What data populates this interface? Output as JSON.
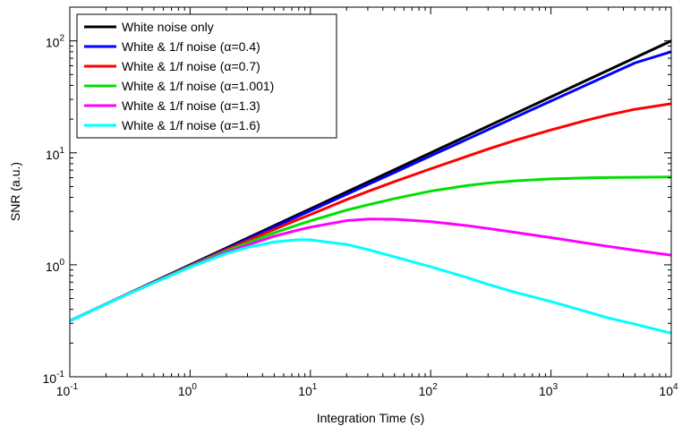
{
  "chart_data": {
    "type": "line",
    "title": "",
    "xlabel": "Integration Time (s)",
    "ylabel": "SNR (a.u.)",
    "x_scale": "log",
    "y_scale": "log",
    "xlim": [
      0.1,
      10000
    ],
    "ylim": [
      0.1,
      200
    ],
    "x_ticks": [
      {
        "value": 0.1,
        "base": "10",
        "exp": "-1"
      },
      {
        "value": 1,
        "base": "10",
        "exp": "0"
      },
      {
        "value": 10,
        "base": "10",
        "exp": "1"
      },
      {
        "value": 100,
        "base": "10",
        "exp": "2"
      },
      {
        "value": 1000,
        "base": "10",
        "exp": "3"
      },
      {
        "value": 10000,
        "base": "10",
        "exp": "4"
      }
    ],
    "y_ticks": [
      {
        "value": 0.1,
        "base": "10",
        "exp": "-1"
      },
      {
        "value": 1,
        "base": "10",
        "exp": "0"
      },
      {
        "value": 10,
        "base": "10",
        "exp": "1"
      },
      {
        "value": 100,
        "base": "10",
        "exp": "2"
      }
    ],
    "grid": false,
    "legend_position": "top-left",
    "x": [
      0.1,
      0.3,
      1,
      2,
      3,
      5,
      8,
      10,
      20,
      30,
      50,
      100,
      200,
      300,
      500,
      1000,
      2000,
      3000,
      5000,
      10000
    ],
    "series": [
      {
        "name": "White noise only",
        "color": "#000000",
        "values": [
          0.316,
          0.548,
          1.0,
          1.414,
          1.732,
          2.236,
          2.828,
          3.162,
          4.472,
          5.477,
          7.071,
          10.0,
          14.14,
          17.32,
          22.36,
          31.62,
          44.72,
          54.77,
          70.71,
          100.0
        ]
      },
      {
        "name": "White & 1/f noise (α=0.4)",
        "color": "#0000ff",
        "values": [
          0.316,
          0.547,
          0.99,
          1.39,
          1.69,
          2.17,
          2.73,
          3.04,
          4.26,
          5.2,
          6.68,
          9.4,
          13.2,
          16.1,
          20.7,
          29.0,
          40.7,
          49.6,
          63.6,
          80.0
        ]
      },
      {
        "name": "White & 1/f noise (α=0.7)",
        "color": "#ff0000",
        "values": [
          0.316,
          0.546,
          0.98,
          1.36,
          1.64,
          2.07,
          2.55,
          2.81,
          3.82,
          4.52,
          5.53,
          7.2,
          9.3,
          10.8,
          12.9,
          16.0,
          19.6,
          21.8,
          24.5,
          27.5
        ]
      },
      {
        "name": "White & 1/f noise (α=1.001)",
        "color": "#00e000",
        "values": [
          0.316,
          0.545,
          0.97,
          1.33,
          1.57,
          1.93,
          2.29,
          2.47,
          3.08,
          3.43,
          3.9,
          4.55,
          5.1,
          5.37,
          5.62,
          5.85,
          5.97,
          6.02,
          6.05,
          6.08
        ]
      },
      {
        "name": "White & 1/f noise (α=1.3)",
        "color": "#ff00ff",
        "values": [
          0.316,
          0.544,
          0.96,
          1.29,
          1.5,
          1.8,
          2.05,
          2.17,
          2.48,
          2.56,
          2.55,
          2.43,
          2.24,
          2.11,
          1.95,
          1.75,
          1.56,
          1.46,
          1.35,
          1.22
        ]
      },
      {
        "name": "White & 1/f noise (α=1.6)",
        "color": "#00ffff",
        "values": [
          0.316,
          0.543,
          0.95,
          1.26,
          1.43,
          1.6,
          1.68,
          1.67,
          1.52,
          1.37,
          1.18,
          0.96,
          0.77,
          0.67,
          0.57,
          0.47,
          0.38,
          0.335,
          0.295,
          0.245
        ]
      }
    ]
  }
}
